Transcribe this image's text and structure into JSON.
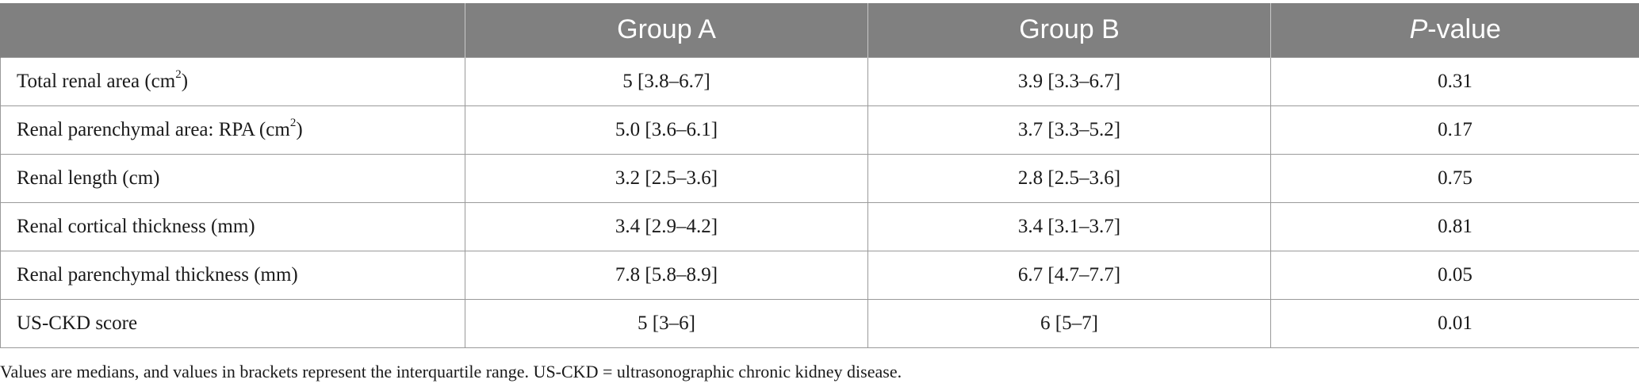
{
  "table": {
    "headers": [
      {
        "text": "",
        "italic_prefix": "",
        "suffix": ""
      },
      {
        "text": "Group A",
        "italic_prefix": "",
        "suffix": ""
      },
      {
        "text": "Group B",
        "italic_prefix": "",
        "suffix": ""
      },
      {
        "text": "",
        "italic_prefix": "P",
        "suffix": "-value"
      }
    ],
    "rows": [
      {
        "label": "Total renal area (cm",
        "sup": "2",
        "label_end": ")",
        "group_a": "5 [3.8–6.7]",
        "group_b": "3.9 [3.3–6.7]",
        "p_value": "0.31"
      },
      {
        "label": "Renal parenchymal area: RPA (cm",
        "sup": "2",
        "label_end": ")",
        "group_a": "5.0 [3.6–6.1]",
        "group_b": "3.7 [3.3–5.2]",
        "p_value": "0.17"
      },
      {
        "label": "Renal length (cm)",
        "sup": "",
        "label_end": "",
        "group_a": "3.2 [2.5–3.6]",
        "group_b": "2.8 [2.5–3.6]",
        "p_value": "0.75"
      },
      {
        "label": "Renal cortical thickness (mm)",
        "sup": "",
        "label_end": "",
        "group_a": "3.4 [2.9–4.2]",
        "group_b": "3.4 [3.1–3.7]",
        "p_value": "0.81"
      },
      {
        "label": "Renal parenchymal thickness (mm)",
        "sup": "",
        "label_end": "",
        "group_a": "7.8 [5.8–8.9]",
        "group_b": "6.7 [4.7–7.7]",
        "p_value": "0.05"
      },
      {
        "label": "US-CKD score",
        "sup": "",
        "label_end": "",
        "group_a": "5 [3–6]",
        "group_b": "6 [5–7]",
        "p_value": "0.01"
      }
    ]
  },
  "footnote": "Values are medians, and values in brackets represent the interquartile range. US-CKD = ultrasonographic chronic kidney disease."
}
